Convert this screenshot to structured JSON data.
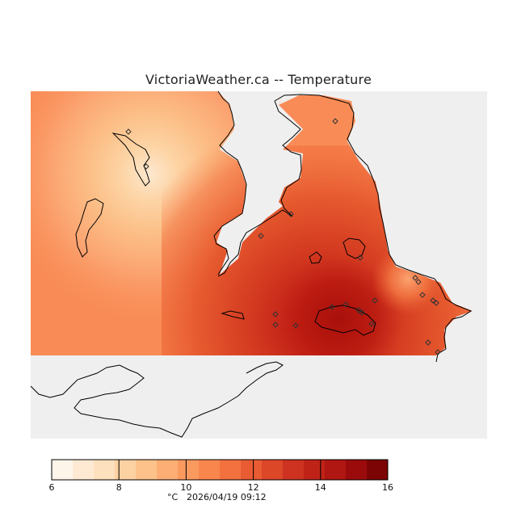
{
  "title": "VictoriaWeather.ca -- Temperature",
  "legend": {
    "min": 6,
    "max": 16,
    "ticks": [
      "6",
      "8",
      "10",
      "12",
      "14",
      "16"
    ],
    "unit": "°C",
    "timestamp": "2026/04/19 09:12",
    "colors": [
      "#fef5ea",
      "#fee9d3",
      "#fde0bd",
      "#fdd2a2",
      "#fdc28a",
      "#fcae74",
      "#fb9a5f",
      "#f8864d",
      "#f3713f",
      "#e95c33",
      "#dc4728",
      "#cd3320",
      "#bf2318",
      "#b01612",
      "#9c0b0c",
      "#7d0404"
    ]
  },
  "map": {
    "ocean_color": "#efefef",
    "stations": 22
  }
}
